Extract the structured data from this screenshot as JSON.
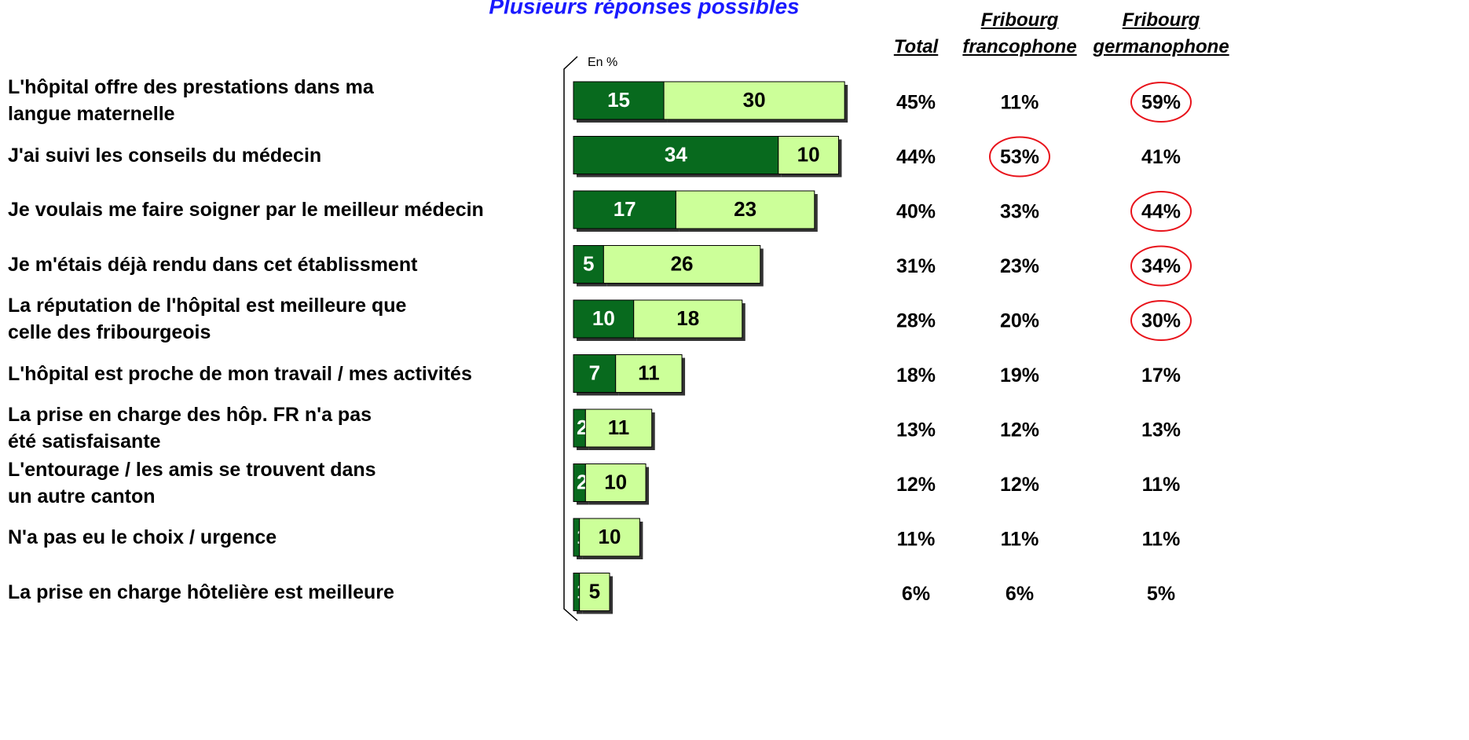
{
  "chart_data": {
    "type": "stacked-bar",
    "subtitle": "Plusieurs réponses possibles",
    "axis_label": "En %",
    "categories": [
      "L'hôpital offre des prestations dans ma\nlangue maternelle",
      "J'ai suivi les conseils du médecin",
      "Je voulais me faire soigner par le meilleur médecin",
      "Je m'étais déjà rendu dans cet établissment",
      "La réputation de l'hôpital est meilleure que\ncelle des fribourgeois",
      "L'hôpital est proche de mon travail / mes activités",
      "La prise en charge des hôp. FR n'a pas\nété satisfaisante",
      "L'entourage / les amis se trouvent dans\nun autre canton",
      "N'a pas eu le choix / urgence",
      "La prise en charge hôtelière est meilleure"
    ],
    "series": [
      {
        "color": "#086a1e",
        "label_color": "#ffffff",
        "values": [
          15,
          34,
          17,
          5,
          10,
          7,
          2,
          2,
          1,
          1
        ]
      },
      {
        "color": "#ccff99",
        "label_color": "#000000",
        "values": [
          30,
          10,
          23,
          26,
          18,
          11,
          11,
          10,
          10,
          5
        ]
      }
    ],
    "xlim": [
      0,
      100
    ],
    "columns": [
      {
        "header": "Total",
        "values": [
          "45%",
          "44%",
          "40%",
          "31%",
          "28%",
          "18%",
          "13%",
          "12%",
          "11%",
          "6%"
        ],
        "circled": []
      },
      {
        "header": "Fribourg\nfrancophone",
        "values": [
          "11%",
          "53%",
          "33%",
          "23%",
          "20%",
          "19%",
          "12%",
          "12%",
          "11%",
          "6%"
        ],
        "circled": [
          1
        ]
      },
      {
        "header": "Fribourg\ngermanophone",
        "values": [
          "59%",
          "41%",
          "44%",
          "34%",
          "30%",
          "17%",
          "13%",
          "11%",
          "11%",
          "5%"
        ],
        "circled": [
          0,
          2,
          3,
          4
        ]
      }
    ]
  }
}
